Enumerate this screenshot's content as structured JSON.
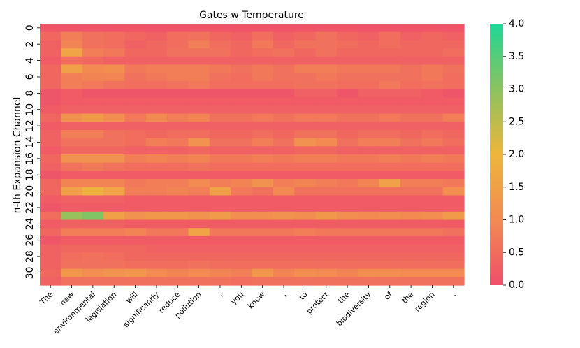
{
  "chart_data": {
    "type": "heatmap",
    "title": "Gates w Temperature",
    "ylabel": "n-th Expansion Channel",
    "xlabel": "",
    "x_tokens": [
      "The",
      "new",
      "environmental",
      "legislation",
      "will",
      "significantly",
      "reduce",
      "pollution",
      ",",
      "you",
      "know",
      ",",
      "to",
      "protect",
      "the",
      "biodiversity",
      "of",
      "the",
      "region",
      "."
    ],
    "y_tick_labels": [
      "0",
      "2",
      "4",
      "6",
      "8",
      "10",
      "12",
      "14",
      "16",
      "18",
      "20",
      "22",
      "24",
      "26",
      "28",
      "30"
    ],
    "n_rows": 32,
    "colorbar": {
      "min": 0.0,
      "max": 4.0,
      "ticks": [
        "0.0",
        "0.5",
        "1.0",
        "1.5",
        "2.0",
        "2.5",
        "3.0",
        "3.5",
        "4.0"
      ],
      "colors": [
        "#ef4f6a",
        "#f28a52",
        "#eeb53c",
        "#8cc25f",
        "#1ed696"
      ]
    },
    "values": [
      [
        0.1,
        0.1,
        0.1,
        0.1,
        0.1,
        0.1,
        0.1,
        0.1,
        0.1,
        0.1,
        0.1,
        0.1,
        0.1,
        0.1,
        0.1,
        0.1,
        0.1,
        0.1,
        0.1,
        0.1
      ],
      [
        0.4,
        0.8,
        0.6,
        0.5,
        0.4,
        0.3,
        0.5,
        0.6,
        0.4,
        0.3,
        0.5,
        0.3,
        0.4,
        0.6,
        0.4,
        0.3,
        0.5,
        0.3,
        0.4,
        0.3
      ],
      [
        0.3,
        0.9,
        0.6,
        0.5,
        0.3,
        0.4,
        0.5,
        0.8,
        0.5,
        0.4,
        0.7,
        0.4,
        0.6,
        0.6,
        0.5,
        0.4,
        0.5,
        0.4,
        0.4,
        0.4
      ],
      [
        0.3,
        1.6,
        0.8,
        0.7,
        0.4,
        0.4,
        0.6,
        0.6,
        0.6,
        0.4,
        0.5,
        0.6,
        0.4,
        0.6,
        0.4,
        0.4,
        0.4,
        0.4,
        0.4,
        0.5
      ],
      [
        0.2,
        0.5,
        0.4,
        0.3,
        0.3,
        0.3,
        0.3,
        0.3,
        0.3,
        0.3,
        0.3,
        0.3,
        0.3,
        0.3,
        0.3,
        0.3,
        0.3,
        0.3,
        0.3,
        0.3
      ],
      [
        0.4,
        1.5,
        1.0,
        1.1,
        0.7,
        0.8,
        0.8,
        0.8,
        0.7,
        0.6,
        0.7,
        0.6,
        0.8,
        0.8,
        0.7,
        0.7,
        0.7,
        0.6,
        0.7,
        0.6
      ],
      [
        0.4,
        0.8,
        0.9,
        0.9,
        0.6,
        0.7,
        0.8,
        0.8,
        0.6,
        0.5,
        0.7,
        0.6,
        0.6,
        0.7,
        0.6,
        0.6,
        0.6,
        0.6,
        0.7,
        0.5
      ],
      [
        0.4,
        0.8,
        0.7,
        0.6,
        0.5,
        0.5,
        0.6,
        0.7,
        0.5,
        0.5,
        0.5,
        0.5,
        0.6,
        0.6,
        0.5,
        0.5,
        0.7,
        0.5,
        0.6,
        0.5
      ],
      [
        0.1,
        0.2,
        0.1,
        0.1,
        0.1,
        0.1,
        0.1,
        0.1,
        0.1,
        0.1,
        0.1,
        0.1,
        0.3,
        0.3,
        0.1,
        0.3,
        0.3,
        0.3,
        0.2,
        0.1
      ],
      [
        0.1,
        0.2,
        0.2,
        0.2,
        0.2,
        0.2,
        0.2,
        0.2,
        0.2,
        0.2,
        0.2,
        0.2,
        0.2,
        0.2,
        0.2,
        0.2,
        0.2,
        0.2,
        0.2,
        0.2
      ],
      [
        0.2,
        0.3,
        0.3,
        0.3,
        0.3,
        0.3,
        0.3,
        0.3,
        0.3,
        0.3,
        0.3,
        0.3,
        0.3,
        0.3,
        0.3,
        0.3,
        0.3,
        0.3,
        0.3,
        0.3
      ],
      [
        0.4,
        1.2,
        1.4,
        1.1,
        0.7,
        1.0,
        0.8,
        0.9,
        0.6,
        0.6,
        0.7,
        0.6,
        0.7,
        0.7,
        0.6,
        0.6,
        0.7,
        0.6,
        0.6,
        0.8
      ],
      [
        0.2,
        0.3,
        0.3,
        0.3,
        0.3,
        0.3,
        0.3,
        0.3,
        0.3,
        0.3,
        0.3,
        0.3,
        0.3,
        0.3,
        0.3,
        0.3,
        0.3,
        0.3,
        0.3,
        0.3
      ],
      [
        0.3,
        0.8,
        0.8,
        0.6,
        0.5,
        0.4,
        0.5,
        0.5,
        0.4,
        0.4,
        0.5,
        0.4,
        0.6,
        0.6,
        0.4,
        0.5,
        0.5,
        0.4,
        0.5,
        0.4
      ],
      [
        0.3,
        0.6,
        0.6,
        0.6,
        0.5,
        0.8,
        0.7,
        1.2,
        0.6,
        0.6,
        0.8,
        0.6,
        1.2,
        1.0,
        0.6,
        0.8,
        0.8,
        0.6,
        0.7,
        0.5
      ],
      [
        0.2,
        0.4,
        0.4,
        0.4,
        0.3,
        0.3,
        0.3,
        0.4,
        0.3,
        0.3,
        0.3,
        0.3,
        0.4,
        0.4,
        0.3,
        0.3,
        0.3,
        0.3,
        0.3,
        0.3
      ],
      [
        0.4,
        1.2,
        1.2,
        1.2,
        0.8,
        0.9,
        0.8,
        0.9,
        0.7,
        0.7,
        0.8,
        0.7,
        0.8,
        0.8,
        0.7,
        0.7,
        0.8,
        0.7,
        0.8,
        0.7
      ],
      [
        0.3,
        0.6,
        0.7,
        0.6,
        0.5,
        0.5,
        0.5,
        0.6,
        0.5,
        0.5,
        0.5,
        0.5,
        0.5,
        0.5,
        0.5,
        0.5,
        0.5,
        0.5,
        0.5,
        0.5
      ],
      [
        0.1,
        0.2,
        0.2,
        0.2,
        0.2,
        0.2,
        0.2,
        0.2,
        0.2,
        0.2,
        0.2,
        0.2,
        0.2,
        0.2,
        0.2,
        0.2,
        0.2,
        0.2,
        0.2,
        0.2
      ],
      [
        0.4,
        0.9,
        0.9,
        0.9,
        0.7,
        0.8,
        0.8,
        1.0,
        0.8,
        0.9,
        1.2,
        0.8,
        0.9,
        0.8,
        0.7,
        0.9,
        1.5,
        0.8,
        0.8,
        0.7
      ],
      [
        0.4,
        1.5,
        1.9,
        1.6,
        0.8,
        0.8,
        0.9,
        0.8,
        1.5,
        0.7,
        0.6,
        1.0,
        0.6,
        0.6,
        0.6,
        0.6,
        0.6,
        0.6,
        0.6,
        1.1
      ],
      [
        0.2,
        0.3,
        0.3,
        0.3,
        0.2,
        0.2,
        0.2,
        0.2,
        0.2,
        0.2,
        0.2,
        0.2,
        0.2,
        0.2,
        0.2,
        0.2,
        0.2,
        0.2,
        0.2,
        0.2
      ],
      [
        0.1,
        0.2,
        0.2,
        0.2,
        0.2,
        0.2,
        0.2,
        0.2,
        0.2,
        0.2,
        0.2,
        0.2,
        0.2,
        0.2,
        0.2,
        0.2,
        0.2,
        0.2,
        0.2,
        0.2
      ],
      [
        0.5,
        2.9,
        3.1,
        1.5,
        1.2,
        1.3,
        1.3,
        1.2,
        1.4,
        1.1,
        1.1,
        1.2,
        1.1,
        1.3,
        1.1,
        1.0,
        1.1,
        1.0,
        1.1,
        1.4
      ],
      [
        0.2,
        0.3,
        0.3,
        0.3,
        0.2,
        0.2,
        0.2,
        0.2,
        0.2,
        0.2,
        0.2,
        0.2,
        0.2,
        0.2,
        0.2,
        0.2,
        0.2,
        0.2,
        0.2,
        0.2
      ],
      [
        0.4,
        0.8,
        0.8,
        0.8,
        0.9,
        0.7,
        0.7,
        1.6,
        0.7,
        0.7,
        0.7,
        0.7,
        0.8,
        0.7,
        0.7,
        0.7,
        0.7,
        0.7,
        0.7,
        0.6
      ],
      [
        0.1,
        0.2,
        0.2,
        0.2,
        0.2,
        0.2,
        0.2,
        0.2,
        0.2,
        0.2,
        0.2,
        0.2,
        0.2,
        0.2,
        0.2,
        0.2,
        0.2,
        0.2,
        0.2,
        0.2
      ],
      [
        0.3,
        0.4,
        0.4,
        0.4,
        0.4,
        0.3,
        0.3,
        0.3,
        0.3,
        0.3,
        0.3,
        0.3,
        0.3,
        0.3,
        0.3,
        0.3,
        0.3,
        0.3,
        0.3,
        0.3
      ],
      [
        0.3,
        0.5,
        0.6,
        0.5,
        0.4,
        0.4,
        0.4,
        0.4,
        0.4,
        0.4,
        0.4,
        0.4,
        0.4,
        0.4,
        0.4,
        0.4,
        0.4,
        0.4,
        0.4,
        0.4
      ],
      [
        0.3,
        0.6,
        0.6,
        0.6,
        0.5,
        0.5,
        0.5,
        0.6,
        0.5,
        0.5,
        0.5,
        0.5,
        0.5,
        0.5,
        0.5,
        0.5,
        0.5,
        0.5,
        0.5,
        0.5
      ],
      [
        0.4,
        1.3,
        1.1,
        1.2,
        1.3,
        1.0,
        0.9,
        1.0,
        0.9,
        0.8,
        1.3,
        0.9,
        1.1,
        1.0,
        0.9,
        1.1,
        1.1,
        1.0,
        1.0,
        1.0
      ],
      [
        0.3,
        0.6,
        0.6,
        0.6,
        0.6,
        0.6,
        0.6,
        0.6,
        0.6,
        0.5,
        0.6,
        0.6,
        0.6,
        0.6,
        0.6,
        0.6,
        0.6,
        0.6,
        0.6,
        0.6
      ]
    ]
  }
}
